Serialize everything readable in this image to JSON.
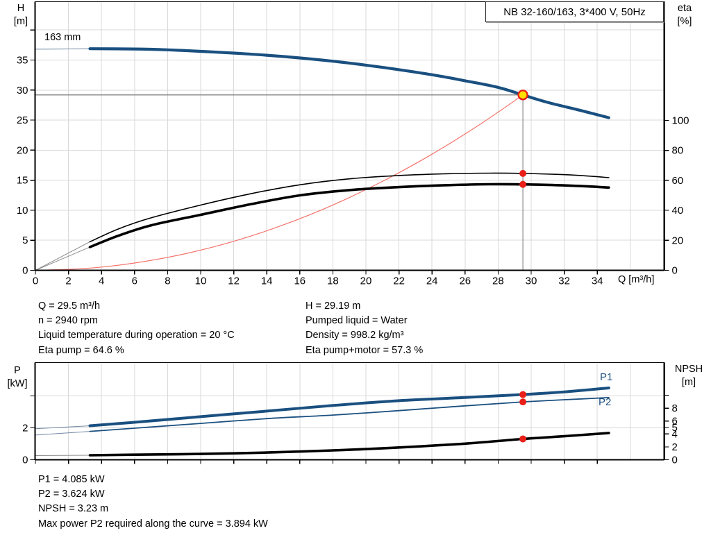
{
  "title_box": {
    "text": "NB 32-160/163, 3*400 V, 50Hz"
  },
  "labels": {
    "h_axis": "H",
    "h_unit": "[m]",
    "eta_axis": "eta",
    "eta_unit": "[%]",
    "q_axis": "Q [m³/h]",
    "p_axis": "P",
    "p_unit": "[kW]",
    "npsh_axis": "NPSH",
    "npsh_unit": "[m]",
    "impeller": "163 mm",
    "p1": "P1",
    "p2": "P2"
  },
  "colors": {
    "primary_blue": "#1a5080",
    "curve_black": "#000000",
    "system_red": "#f4736b",
    "marker_red": "#e82019",
    "marker_yellow": "#ffe100",
    "crosshair_gray": "#8c8c8c",
    "grid": "#d8d8d8",
    "thin_blue": "#7288a3",
    "thin_gray": "#8a8a8a"
  },
  "chart_data": [
    {
      "id": "qh-eta-chart",
      "type": "line",
      "x": {
        "label": "Q [m³/h]",
        "min": 0,
        "max": 38,
        "ticks": [
          0,
          2,
          4,
          6,
          8,
          10,
          12,
          14,
          16,
          18,
          20,
          22,
          24,
          26,
          28,
          30,
          32,
          34
        ],
        "grid_step": 2,
        "grid_max": 36,
        "show_labels": true
      },
      "left_axis": {
        "name": "H",
        "unit": "m",
        "ticks": [
          [
            0,
            "0"
          ],
          [
            5,
            "5"
          ],
          [
            10,
            "10"
          ],
          [
            15,
            "15"
          ],
          [
            20,
            "20"
          ],
          [
            25,
            "25"
          ],
          [
            30,
            "30"
          ],
          [
            35,
            "35"
          ],
          [
            40,
            ""
          ]
        ],
        "grid": [
          5,
          10,
          15,
          20,
          25,
          30,
          35,
          40
        ]
      },
      "right_axis": {
        "name": "eta",
        "unit": "%",
        "ticks": [
          [
            0,
            "0"
          ],
          [
            20,
            "20"
          ],
          [
            40,
            "40"
          ],
          [
            60,
            "60"
          ],
          [
            80,
            "80"
          ],
          [
            100,
            "100"
          ]
        ]
      },
      "curves": [
        {
          "name": "system-curve",
          "axis": "H",
          "color": "#f4736b",
          "width": 1.2,
          "thin_until": 0,
          "points": [
            [
              0,
              0
            ],
            [
              3,
              0.3
            ],
            [
              6,
              1.21
            ],
            [
              9,
              2.72
            ],
            [
              12,
              4.83
            ],
            [
              15,
              7.55
            ],
            [
              18,
              10.87
            ],
            [
              21,
              14.8
            ],
            [
              24,
              19.33
            ],
            [
              27,
              24.47
            ],
            [
              29.5,
              29.19
            ]
          ]
        },
        {
          "name": "head",
          "axis": "H",
          "color": "#1a5080",
          "width": 4.2,
          "thin_until": 3.3,
          "thin_color": "#7288a3",
          "points": [
            [
              0,
              36.8
            ],
            [
              1.6,
              36.84
            ],
            [
              3.3,
              36.88
            ],
            [
              6,
              36.84
            ],
            [
              8,
              36.7
            ],
            [
              10,
              36.45
            ],
            [
              12,
              36.15
            ],
            [
              14,
              35.8
            ],
            [
              16,
              35.35
            ],
            [
              18,
              34.8
            ],
            [
              20,
              34.15
            ],
            [
              22,
              33.4
            ],
            [
              24,
              32.55
            ],
            [
              26,
              31.55
            ],
            [
              28,
              30.45
            ],
            [
              29.5,
              29.19
            ],
            [
              31,
              27.95
            ],
            [
              33,
              26.6
            ],
            [
              34.7,
              25.4
            ]
          ]
        },
        {
          "name": "eta-pump",
          "axis": "eta",
          "color": "#000000",
          "width": 1.6,
          "thin_until": 3.3,
          "thin_color": "#8a8a8a",
          "points": [
            [
              0,
              0
            ],
            [
              3.3,
              19
            ],
            [
              5,
              27.5
            ],
            [
              7,
              35
            ],
            [
              10,
              43.5
            ],
            [
              13,
              51
            ],
            [
              16,
              57
            ],
            [
              19,
              61
            ],
            [
              22,
              63.2
            ],
            [
              25,
              64.4
            ],
            [
              27.5,
              64.8
            ],
            [
              29.5,
              64.6
            ],
            [
              31.5,
              64
            ],
            [
              33,
              63.2
            ],
            [
              34.7,
              61.8
            ]
          ]
        },
        {
          "name": "eta-pump-motor",
          "axis": "eta",
          "color": "#000000",
          "width": 3.6,
          "thin_until": 3.3,
          "thin_color": "#8a8a8a",
          "points": [
            [
              0,
              0
            ],
            [
              3.3,
              15.5
            ],
            [
              5,
              23
            ],
            [
              7,
              30
            ],
            [
              10,
              37
            ],
            [
              13,
              44
            ],
            [
              16,
              50
            ],
            [
              19,
              53.5
            ],
            [
              22,
              55.5
            ],
            [
              25,
              56.8
            ],
            [
              27.5,
              57.4
            ],
            [
              29.5,
              57.3
            ],
            [
              31.5,
              56.8
            ],
            [
              33,
              56.2
            ],
            [
              34.7,
              55.2
            ]
          ]
        }
      ],
      "duty_point": {
        "q": 29.5,
        "H": 29.19,
        "eta_pump": 64.6,
        "eta_pump_motor": 57.3
      },
      "crosshair": {
        "q": 29.5,
        "axis": "H",
        "value": 29.19
      },
      "markers": [
        {
          "name": "duty-point",
          "q": 29.5,
          "axis": "H",
          "value": 29.19,
          "style": "duty"
        },
        {
          "name": "eta-pump-dot",
          "q": 29.5,
          "axis": "eta",
          "value": 64.6,
          "style": "dot"
        },
        {
          "name": "eta-pump-motor-dot",
          "q": 29.5,
          "axis": "eta",
          "value": 57.3,
          "style": "dot"
        }
      ]
    },
    {
      "id": "power-npsh-chart",
      "type": "line",
      "x": {
        "label": "",
        "min": 0,
        "max": 38,
        "ticks": [
          0,
          2,
          4,
          6,
          8,
          10,
          12,
          14,
          16,
          18,
          20,
          22,
          24,
          26,
          28,
          30,
          32,
          34
        ],
        "grid_step": 2,
        "grid_max": 36,
        "show_labels": false
      },
      "left_axis": {
        "name": "P",
        "unit": "kW",
        "ticks": [
          [
            0,
            "0"
          ],
          [
            2,
            "2"
          ],
          [
            4,
            ""
          ]
        ],
        "grid": [
          2,
          4
        ]
      },
      "right_axis": {
        "name": "NPSH",
        "unit": "m",
        "ticks": [
          [
            0,
            "0"
          ],
          [
            2,
            "2"
          ],
          [
            4,
            "4"
          ],
          [
            5,
            "5"
          ],
          [
            6,
            "6"
          ],
          [
            8,
            "8"
          ],
          [
            10,
            ""
          ]
        ]
      },
      "curves": [
        {
          "name": "p1",
          "axis": "P",
          "color": "#1a5080",
          "width": 4,
          "thin_until": 3.3,
          "thin_color": "#7288a3",
          "points": [
            [
              0,
              1.95
            ],
            [
              3.3,
              2.13
            ],
            [
              6,
              2.35
            ],
            [
              10,
              2.7
            ],
            [
              14,
              3.05
            ],
            [
              18,
              3.4
            ],
            [
              22,
              3.7
            ],
            [
              26,
              3.9
            ],
            [
              29.5,
              4.085
            ],
            [
              32,
              4.25
            ],
            [
              34.7,
              4.5
            ]
          ]
        },
        {
          "name": "p2",
          "axis": "P",
          "color": "#1a5080",
          "width": 1.8,
          "thin_until": 3.3,
          "thin_color": "#7288a3",
          "points": [
            [
              0,
              1.55
            ],
            [
              3.3,
              1.78
            ],
            [
              6,
              1.98
            ],
            [
              10,
              2.28
            ],
            [
              14,
              2.58
            ],
            [
              18,
              2.8
            ],
            [
              22,
              3.08
            ],
            [
              26,
              3.38
            ],
            [
              29.5,
              3.624
            ],
            [
              32,
              3.76
            ],
            [
              34.7,
              3.894
            ]
          ]
        },
        {
          "name": "npsh",
          "axis": "NPSH",
          "color": "#000000",
          "width": 3.6,
          "thin_until": 3.3,
          "thin_color": "#8a8a8a",
          "points": [
            [
              0,
              0.65
            ],
            [
              3.3,
              0.7
            ],
            [
              6,
              0.78
            ],
            [
              10,
              0.9
            ],
            [
              14,
              1.12
            ],
            [
              18,
              1.45
            ],
            [
              22,
              1.9
            ],
            [
              26,
              2.5
            ],
            [
              29.5,
              3.23
            ],
            [
              32,
              3.65
            ],
            [
              34.7,
              4.15
            ]
          ]
        }
      ],
      "duty_point": {
        "q": 29.5,
        "P1": 4.085,
        "P2": 3.624,
        "NPSH": 3.23
      },
      "markers": [
        {
          "name": "p1-dot",
          "q": 29.5,
          "axis": "P",
          "value": 4.085,
          "style": "dot"
        },
        {
          "name": "p2-dot",
          "q": 29.5,
          "axis": "P",
          "value": 3.624,
          "style": "dot"
        },
        {
          "name": "npsh-dot",
          "q": 29.5,
          "axis": "NPSH",
          "value": 3.23,
          "style": "dot"
        }
      ]
    }
  ],
  "info_top_left": {
    "lines": [
      "Q = 29.5 m³/h",
      "n = 2940 rpm",
      "Liquid temperature during operation = 20 °C",
      "Eta pump = 64.6 %"
    ]
  },
  "info_top_right": {
    "lines": [
      "H = 29.19 m",
      "Pumped liquid = Water",
      "Density = 998.2 kg/m³",
      "Eta pump+motor = 57.3 %"
    ]
  },
  "info_bottom": {
    "lines": [
      "P1 = 4.085 kW",
      "P2 = 3.624 kW",
      "NPSH = 3.23 m",
      "Max power P2 required along the curve = 3.894 kW"
    ]
  }
}
